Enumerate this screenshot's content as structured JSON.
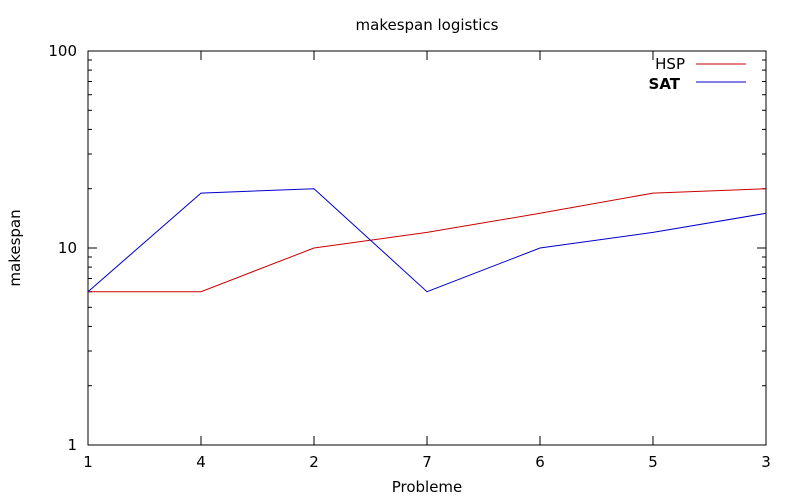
{
  "chart_data": {
    "type": "line",
    "title": "makespan logistics",
    "xlabel": "Probleme",
    "ylabel": "makespan",
    "categories": [
      "1",
      "4",
      "2",
      "7",
      "6",
      "5",
      "3"
    ],
    "y_scale": "log",
    "ylim": [
      1,
      100
    ],
    "y_ticks": [
      1,
      10,
      100
    ],
    "y_tick_labels": [
      "1",
      "10",
      "100"
    ],
    "grid": false,
    "legend_position": "top-right",
    "series": [
      {
        "name": "HSP",
        "color": "#cc0000",
        "values": [
          6,
          6,
          10,
          12,
          15,
          19,
          20
        ]
      },
      {
        "name": "SAT",
        "color": "#0000cc",
        "values": [
          6,
          19,
          20,
          6,
          10,
          12,
          15
        ]
      }
    ]
  }
}
